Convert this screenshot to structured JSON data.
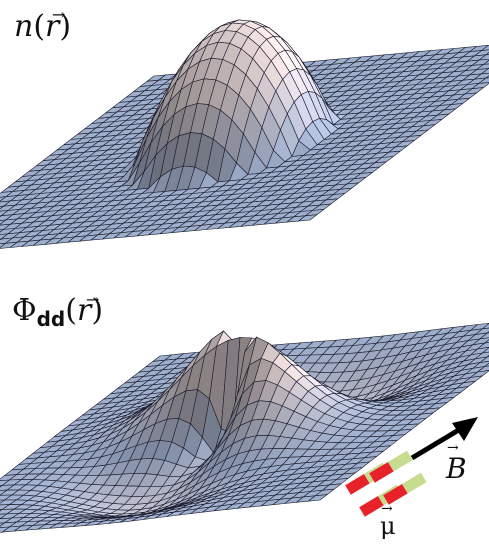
{
  "panels": [
    {
      "id": "density",
      "title_symbol": "n",
      "title_subscript": "",
      "title_argument": "r",
      "surface_type": "parabolic-cap"
    },
    {
      "id": "dipolar-potential",
      "title_symbol": "Φ",
      "title_subscript": "dd",
      "title_argument": "r",
      "surface_type": "dipolar-saddle"
    }
  ],
  "field_label": "B",
  "dipole_label": "μ",
  "colors": {
    "surface_flat": "#9fb0cf",
    "surface_peak": "#e8d8d8",
    "mesh": "#1a1a2a",
    "arrow": "#000000",
    "dipole_red": "#e8222a",
    "dipole_green": "#c6dc8e"
  }
}
